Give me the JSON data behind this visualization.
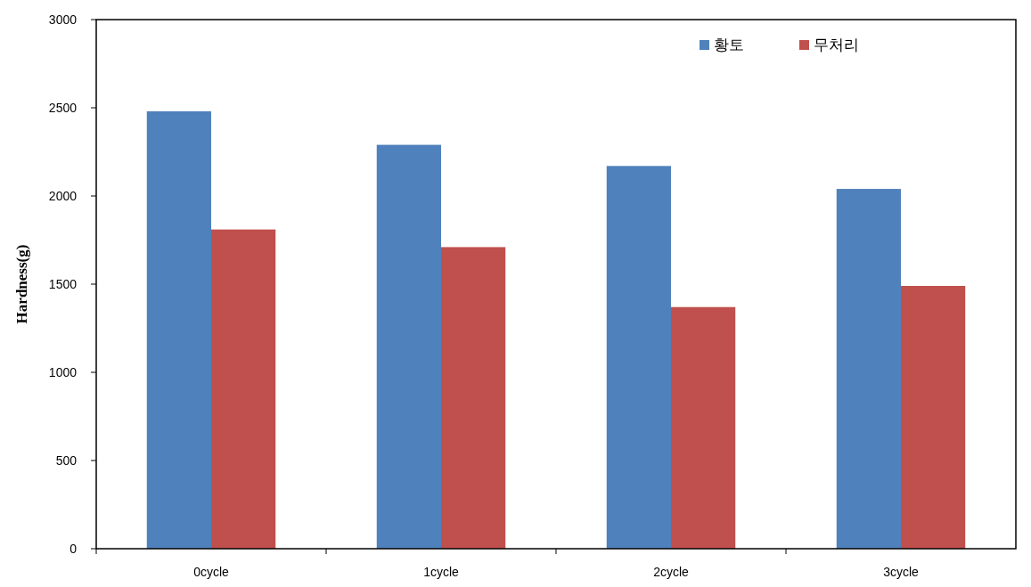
{
  "chart_data": {
    "type": "bar",
    "ylabel": "Hardness(g)",
    "categories": [
      "0cycle",
      "1cycle",
      "2cycle",
      "3cycle"
    ],
    "series": [
      {
        "name": "황토",
        "color": "#4f81bd",
        "values": [
          2480,
          2290,
          2170,
          2040
        ]
      },
      {
        "name": "무처리",
        "color": "#c0504d",
        "values": [
          1810,
          1710,
          1370,
          1490
        ]
      }
    ],
    "ylim": [
      0,
      3000
    ],
    "yticks": [
      0,
      500,
      1000,
      1500,
      2000,
      2500,
      3000
    ],
    "legend": "top right"
  }
}
